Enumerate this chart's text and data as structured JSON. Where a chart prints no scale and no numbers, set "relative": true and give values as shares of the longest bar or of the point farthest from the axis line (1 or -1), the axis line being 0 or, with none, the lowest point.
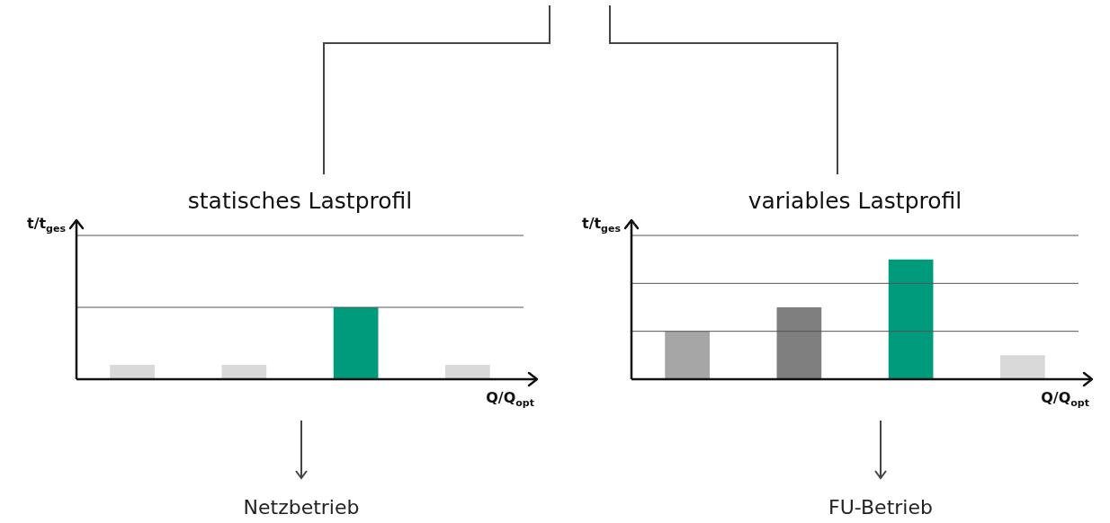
{
  "chart_data": [
    {
      "type": "bar",
      "title": "statisches Lastprofil",
      "xlabel": "Q/Q$_{opt}$",
      "ylabel": "t/t$_{ges}$",
      "categories": [
        null,
        null,
        null,
        null
      ],
      "relative": true,
      "values": [
        0.2,
        0.2,
        1,
        0.2
      ],
      "colors": [
        "#d9d9d9",
        "#d9d9d9",
        "#009b7d",
        "#d9d9d9"
      ],
      "annotations": [
        "Netzbetrieb"
      ],
      "ref_lines": [
        {
          "axis": "y",
          "value": 1,
          "color": "#555555"
        },
        {
          "axis": "y",
          "value": 2,
          "color": "#555555"
        }
      ]
    },
    {
      "type": "bar",
      "title": "variables Lastprofil",
      "xlabel": "Q/Q$_{opt}$",
      "ylabel": "t/t$_{ges}$",
      "categories": [
        null,
        null,
        null,
        null
      ],
      "relative": true,
      "values": [
        0.4,
        0.6,
        1,
        0.2
      ],
      "colors": [
        "#a6a6a6",
        "#7f7f7f",
        "#009b7d",
        "#d9d9d9"
      ],
      "annotations": [
        "FU-Betrieb"
      ],
      "ref_lines": [
        {
          "axis": "y",
          "value": 0.4,
          "color": "#555555"
        },
        {
          "axis": "y",
          "value": 0.8,
          "color": "#555555"
        },
        {
          "axis": "y",
          "value": 1.2,
          "color": "#555555"
        }
      ]
    }
  ]
}
